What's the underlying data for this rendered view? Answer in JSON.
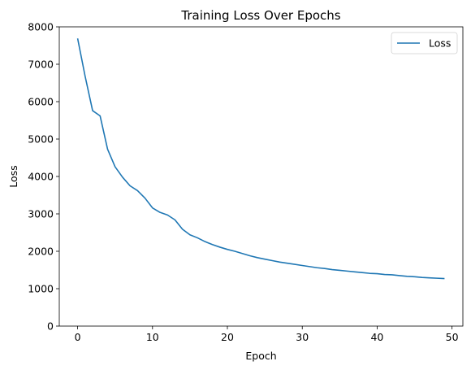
{
  "chart_data": {
    "type": "line",
    "title": "Training Loss Over Epochs",
    "xlabel": "Epoch",
    "ylabel": "Loss",
    "xlim": [
      -2.45,
      51.45
    ],
    "ylim": [
      0,
      8000
    ],
    "xticks": [
      0,
      10,
      20,
      30,
      40,
      50
    ],
    "yticks": [
      0,
      1000,
      2000,
      3000,
      4000,
      5000,
      6000,
      7000,
      8000
    ],
    "grid": false,
    "legend": "top-right",
    "series": [
      {
        "name": "Loss",
        "color": "#1f77b4",
        "x": [
          0,
          1,
          2,
          3,
          4,
          5,
          6,
          7,
          8,
          9,
          10,
          11,
          12,
          13,
          14,
          15,
          16,
          17,
          18,
          19,
          20,
          21,
          22,
          23,
          24,
          25,
          26,
          27,
          28,
          29,
          30,
          31,
          32,
          33,
          34,
          35,
          36,
          37,
          38,
          39,
          40,
          41,
          42,
          43,
          44,
          45,
          46,
          47,
          48,
          49
        ],
        "values": [
          7690,
          6680,
          5760,
          5620,
          4730,
          4260,
          3980,
          3750,
          3620,
          3420,
          3160,
          3040,
          2970,
          2840,
          2590,
          2440,
          2360,
          2260,
          2180,
          2110,
          2050,
          2000,
          1940,
          1880,
          1830,
          1790,
          1750,
          1710,
          1680,
          1650,
          1620,
          1590,
          1560,
          1540,
          1510,
          1490,
          1470,
          1450,
          1430,
          1410,
          1400,
          1380,
          1370,
          1350,
          1330,
          1320,
          1300,
          1290,
          1280,
          1270
        ]
      }
    ]
  }
}
